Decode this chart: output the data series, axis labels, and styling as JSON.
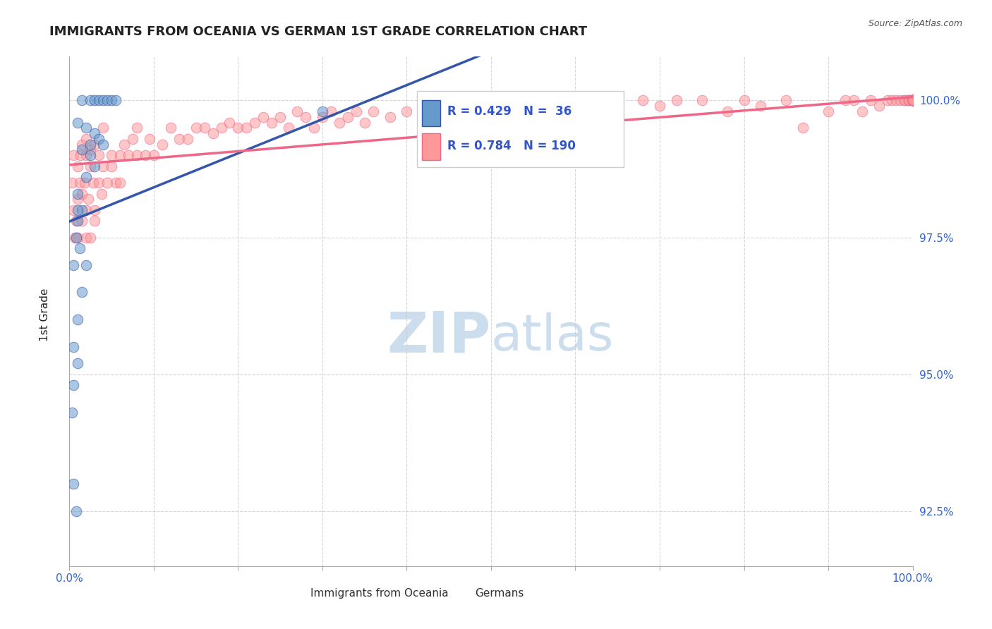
{
  "title": "IMMIGRANTS FROM OCEANIA VS GERMAN 1ST GRADE CORRELATION CHART",
  "source": "Source: ZipAtlas.com",
  "ylabel": "1st Grade",
  "yaxis_values": [
    100.0,
    97.5,
    95.0,
    92.5
  ],
  "xaxis_range": [
    0.0,
    100.0
  ],
  "yaxis_range": [
    91.5,
    100.8
  ],
  "legend_blue_r": "R = 0.429",
  "legend_blue_n": "N =  36",
  "legend_pink_r": "R = 0.784",
  "legend_pink_n": "N = 190",
  "blue_color": "#6699CC",
  "pink_color": "#FF9999",
  "blue_line_color": "#3355AA",
  "pink_line_color": "#EE6688",
  "watermark_color": "#CCDDEE",
  "blue_scatter_x": [
    1.5,
    2.5,
    3.0,
    3.5,
    4.0,
    4.5,
    5.0,
    5.5,
    1.0,
    2.0,
    3.0,
    3.5,
    4.0,
    1.5,
    2.5,
    3.0,
    2.0,
    1.0,
    1.5,
    1.0,
    0.8,
    1.2,
    2.0,
    1.5,
    1.0,
    0.5,
    1.0,
    0.5,
    0.3,
    30.0,
    55.0,
    0.5,
    0.8,
    1.0,
    0.5,
    2.5
  ],
  "blue_scatter_y": [
    100.0,
    100.0,
    100.0,
    100.0,
    100.0,
    100.0,
    100.0,
    100.0,
    99.6,
    99.5,
    99.4,
    99.3,
    99.2,
    99.1,
    99.0,
    98.8,
    98.6,
    98.3,
    98.0,
    97.8,
    97.5,
    97.3,
    97.0,
    96.5,
    96.0,
    95.5,
    95.2,
    94.8,
    94.3,
    99.8,
    99.9,
    93.0,
    92.5,
    98.0,
    97.0,
    99.2
  ],
  "pink_scatter_x": [
    0.3,
    0.5,
    0.5,
    0.6,
    0.8,
    1.0,
    1.0,
    1.0,
    1.2,
    1.3,
    1.5,
    1.5,
    1.5,
    1.8,
    2.0,
    2.0,
    2.0,
    2.0,
    2.2,
    2.5,
    2.5,
    2.5,
    2.8,
    3.0,
    3.0,
    3.0,
    3.5,
    3.5,
    3.8,
    4.0,
    4.0,
    4.5,
    5.0,
    5.0,
    5.5,
    6.0,
    6.0,
    6.5,
    7.0,
    7.5,
    8.0,
    8.0,
    9.0,
    9.5,
    10.0,
    11.0,
    12.0,
    13.0,
    14.0,
    15.0,
    16.0,
    17.0,
    18.0,
    19.0,
    20.0,
    21.0,
    22.0,
    23.0,
    24.0,
    25.0,
    26.0,
    27.0,
    28.0,
    29.0,
    30.0,
    31.0,
    32.0,
    33.0,
    34.0,
    35.0,
    36.0,
    38.0,
    40.0,
    42.0,
    44.0,
    46.0,
    48.0,
    50.0,
    52.0,
    55.0,
    57.0,
    60.0,
    62.0,
    65.0,
    68.0,
    70.0,
    72.0,
    75.0,
    78.0,
    80.0,
    82.0,
    85.0,
    87.0,
    90.0,
    92.0,
    93.0,
    94.0,
    95.0,
    96.0,
    97.0,
    97.5,
    98.0,
    98.5,
    99.0,
    99.0,
    99.5,
    99.5,
    99.5,
    100.0,
    100.0,
    100.0,
    100.0,
    100.0,
    100.0,
    100.0,
    100.0,
    100.0,
    100.0,
    100.0,
    100.0,
    100.0,
    100.0,
    100.0,
    100.0,
    100.0,
    100.0,
    100.0,
    100.0,
    100.0,
    100.0,
    100.0,
    100.0,
    100.0,
    100.0,
    100.0,
    100.0,
    100.0,
    100.0,
    100.0,
    100.0,
    100.0,
    100.0,
    100.0,
    100.0,
    100.0,
    100.0,
    100.0,
    100.0,
    100.0,
    100.0,
    100.0,
    100.0,
    100.0,
    100.0,
    100.0,
    100.0,
    100.0,
    100.0,
    100.0,
    100.0,
    100.0,
    100.0,
    100.0,
    100.0,
    100.0,
    100.0,
    100.0,
    100.0,
    100.0,
    100.0,
    100.0,
    100.0,
    100.0,
    100.0,
    100.0,
    100.0,
    100.0,
    100.0,
    100.0,
    100.0,
    100.0,
    100.0,
    100.0,
    100.0,
    100.0,
    100.0,
    100.0,
    100.0,
    100.0
  ],
  "pink_scatter_y": [
    98.5,
    99.0,
    98.0,
    97.5,
    97.8,
    98.2,
    97.5,
    98.8,
    98.5,
    99.0,
    98.3,
    99.2,
    97.8,
    98.5,
    99.0,
    98.0,
    97.5,
    99.3,
    98.2,
    98.8,
    99.1,
    97.5,
    98.5,
    98.0,
    99.2,
    97.8,
    98.5,
    99.0,
    98.3,
    98.8,
    99.5,
    98.5,
    98.8,
    99.0,
    98.5,
    99.0,
    98.5,
    99.2,
    99.0,
    99.3,
    99.0,
    99.5,
    99.0,
    99.3,
    99.0,
    99.2,
    99.5,
    99.3,
    99.3,
    99.5,
    99.5,
    99.4,
    99.5,
    99.6,
    99.5,
    99.5,
    99.6,
    99.7,
    99.6,
    99.7,
    99.5,
    99.8,
    99.7,
    99.5,
    99.7,
    99.8,
    99.6,
    99.7,
    99.8,
    99.6,
    99.8,
    99.7,
    99.8,
    99.8,
    99.9,
    99.8,
    99.9,
    99.7,
    99.8,
    99.8,
    99.9,
    99.8,
    99.9,
    99.9,
    100.0,
    99.9,
    100.0,
    100.0,
    99.8,
    100.0,
    99.9,
    100.0,
    99.5,
    99.8,
    100.0,
    100.0,
    99.8,
    100.0,
    99.9,
    100.0,
    100.0,
    100.0,
    100.0,
    100.0,
    100.0,
    100.0,
    100.0,
    100.0,
    100.0,
    100.0,
    100.0,
    100.0,
    100.0,
    100.0,
    100.0,
    100.0,
    100.0,
    100.0,
    100.0,
    100.0,
    100.0,
    100.0,
    100.0,
    100.0,
    100.0,
    100.0,
    100.0,
    100.0,
    100.0,
    100.0,
    100.0,
    100.0,
    100.0,
    100.0,
    100.0,
    100.0,
    100.0,
    100.0,
    100.0,
    100.0,
    100.0,
    100.0,
    100.0,
    100.0,
    100.0,
    100.0,
    100.0,
    100.0,
    100.0,
    100.0,
    100.0,
    100.0,
    100.0,
    100.0,
    100.0,
    100.0,
    100.0,
    100.0,
    100.0,
    100.0,
    100.0,
    100.0,
    100.0,
    100.0,
    100.0,
    100.0,
    100.0,
    100.0,
    100.0,
    100.0,
    100.0,
    100.0,
    100.0,
    100.0,
    100.0,
    100.0,
    100.0,
    100.0,
    100.0,
    100.0,
    100.0,
    100.0,
    100.0,
    100.0,
    100.0,
    100.0,
    100.0,
    100.0,
    100.0,
    100.0,
    100.0
  ]
}
